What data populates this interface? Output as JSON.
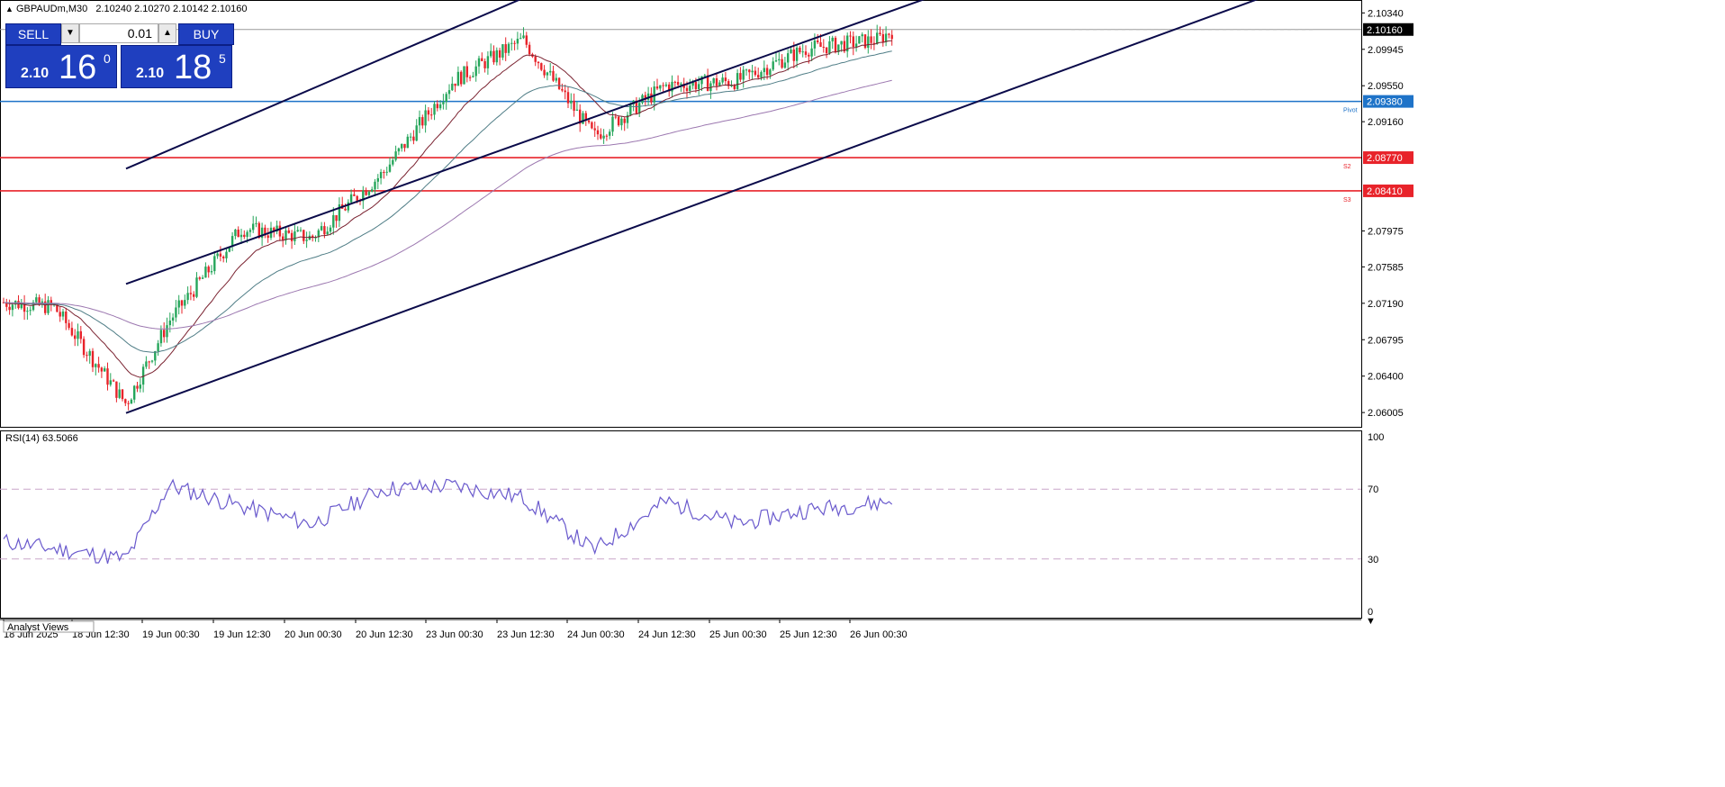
{
  "header": {
    "symbol_timeframe": "GBPAUDm,M30",
    "ohlc": "2.10240 2.10270 2.10142 2.10160"
  },
  "trade_panel": {
    "sell_label": "SELL",
    "buy_label": "BUY",
    "lot_value": "0.01",
    "sell_price_small": "2.10",
    "sell_price_big": "16",
    "sell_price_sup": "0",
    "buy_price_small": "2.10",
    "buy_price_big": "18",
    "buy_price_sup": "5"
  },
  "price_axis": {
    "ticks": [
      "2.10340",
      "2.09945",
      "2.09550",
      "2.09160",
      "2.07975",
      "2.07585",
      "2.07190",
      "2.06795",
      "2.06400",
      "2.06005"
    ],
    "current_price_label": "2.10160"
  },
  "levels": [
    {
      "label": "2.09380",
      "tag": "Pivot",
      "color": "#1e73c8"
    },
    {
      "label": "2.08770",
      "tag": "S2",
      "color": "#e8232a"
    },
    {
      "label": "2.08410",
      "tag": "S3",
      "color": "#e8232a"
    }
  ],
  "rsi": {
    "label": "RSI(14) 63.5066",
    "ticks": [
      "100",
      "70",
      "30",
      "0"
    ]
  },
  "time_axis": {
    "labels": [
      "18 Jun 2025",
      "18 Jun 12:30",
      "19 Jun 00:30",
      "19 Jun 12:30",
      "20 Jun 00:30",
      "20 Jun 12:30",
      "23 Jun 00:30",
      "23 Jun 12:30",
      "24 Jun 00:30",
      "24 Jun 12:30",
      "25 Jun 00:30",
      "25 Jun 12:30",
      "26 Jun 00:30"
    ]
  },
  "bottom_tab": "Analyst Views",
  "colors": {
    "bull": "#26a65b",
    "bear": "#e8232a",
    "channel": "#0a0a4a",
    "ma_fast": "#7a2230",
    "ma_mid": "#4f7d86",
    "ma_slow": "#9c78b0",
    "rsi_line": "#6a5acd"
  },
  "chart_data": {
    "type": "candlestick",
    "symbol": "GBPAUDm",
    "timeframe": "M30",
    "ylim": [
      2.0585,
      2.1048
    ],
    "channel_lines": [
      {
        "from": [
          "18 Jun 12:30",
          2.0865
        ],
        "to": [
          "23 Jun 12:30",
          2.105
        ]
      },
      {
        "from": [
          "18 Jun 12:30",
          2.074
        ],
        "to": [
          "26 Jun 06:00",
          2.105
        ]
      },
      {
        "from": [
          "18 Jun 12:30",
          2.06
        ],
        "to": [
          "27 Jun 00:00",
          2.105
        ]
      }
    ],
    "horizontal_levels": [
      2.1016,
      2.0938,
      2.0877,
      2.0841
    ],
    "close_anchors": [
      {
        "x": "18 Jun 00:00",
        "close": 2.072
      },
      {
        "x": "18 Jun 06:00",
        "close": 2.0715
      },
      {
        "x": "18 Jun 12:30",
        "close": 2.061
      },
      {
        "x": "19 Jun 00:30",
        "close": 2.07
      },
      {
        "x": "19 Jun 12:30",
        "close": 2.08
      },
      {
        "x": "20 Jun 00:30",
        "close": 2.079
      },
      {
        "x": "20 Jun 12:30",
        "close": 2.086
      },
      {
        "x": "23 Jun 00:30",
        "close": 2.096
      },
      {
        "x": "23 Jun 12:30",
        "close": 2.1005
      },
      {
        "x": "24 Jun 00:30",
        "close": 2.09
      },
      {
        "x": "24 Jun 12:30",
        "close": 2.0955
      },
      {
        "x": "25 Jun 00:30",
        "close": 2.096
      },
      {
        "x": "25 Jun 12:30",
        "close": 2.0995
      },
      {
        "x": "26 Jun 00:30",
        "close": 2.1005
      },
      {
        "x": "26 Jun 03:30",
        "close": 2.1016
      }
    ],
    "rsi": {
      "period": 14,
      "last": 63.5066,
      "ylim": [
        0,
        100
      ],
      "levels": [
        70,
        30
      ],
      "anchors": [
        {
          "x": "18 Jun 00:00",
          "value": 40
        },
        {
          "x": "18 Jun 12:30",
          "value": 30
        },
        {
          "x": "19 Jun 00:30",
          "value": 72
        },
        {
          "x": "19 Jun 12:30",
          "value": 60
        },
        {
          "x": "20 Jun 00:30",
          "value": 50
        },
        {
          "x": "20 Jun 12:30",
          "value": 70
        },
        {
          "x": "23 Jun 00:30",
          "value": 72
        },
        {
          "x": "23 Jun 12:30",
          "value": 65
        },
        {
          "x": "24 Jun 00:30",
          "value": 35
        },
        {
          "x": "24 Jun 12:30",
          "value": 63
        },
        {
          "x": "25 Jun 00:30",
          "value": 50
        },
        {
          "x": "25 Jun 12:30",
          "value": 58
        },
        {
          "x": "26 Jun 00:30",
          "value": 62
        },
        {
          "x": "26 Jun 03:30",
          "value": 63.5
        }
      ]
    }
  }
}
